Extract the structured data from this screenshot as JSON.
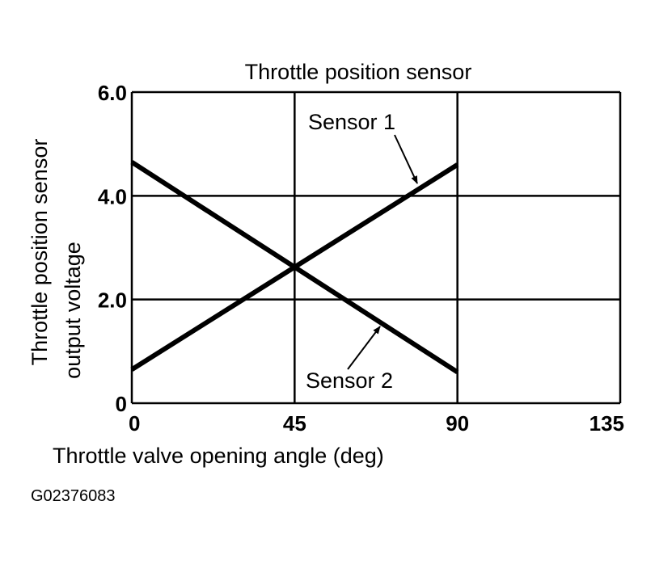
{
  "chart_data": {
    "type": "line",
    "title": "Throttle position sensor",
    "xlabel": "Throttle valve opening angle (deg)",
    "ylabel": [
      "Throttle position sensor",
      "output voltage"
    ],
    "xlim": [
      0,
      135
    ],
    "ylim": [
      0,
      6.0
    ],
    "xticks": [
      0,
      45,
      90,
      135
    ],
    "xtick_labels": [
      "0",
      "45",
      "90",
      "135"
    ],
    "yticks": [
      0,
      2.0,
      4.0,
      6.0
    ],
    "ytick_labels": [
      "0",
      "2.0",
      "4.0",
      "6.0"
    ],
    "grid": true,
    "line_color": "#000000",
    "series": [
      {
        "name": "Sensor 1",
        "x": [
          0,
          90
        ],
        "y": [
          0.65,
          4.6
        ]
      },
      {
        "name": "Sensor 2",
        "x": [
          0,
          90
        ],
        "y": [
          4.65,
          0.6
        ]
      }
    ],
    "annotations": [
      "Sensor 1",
      "Sensor 2"
    ]
  },
  "figure_id": "G02376083"
}
